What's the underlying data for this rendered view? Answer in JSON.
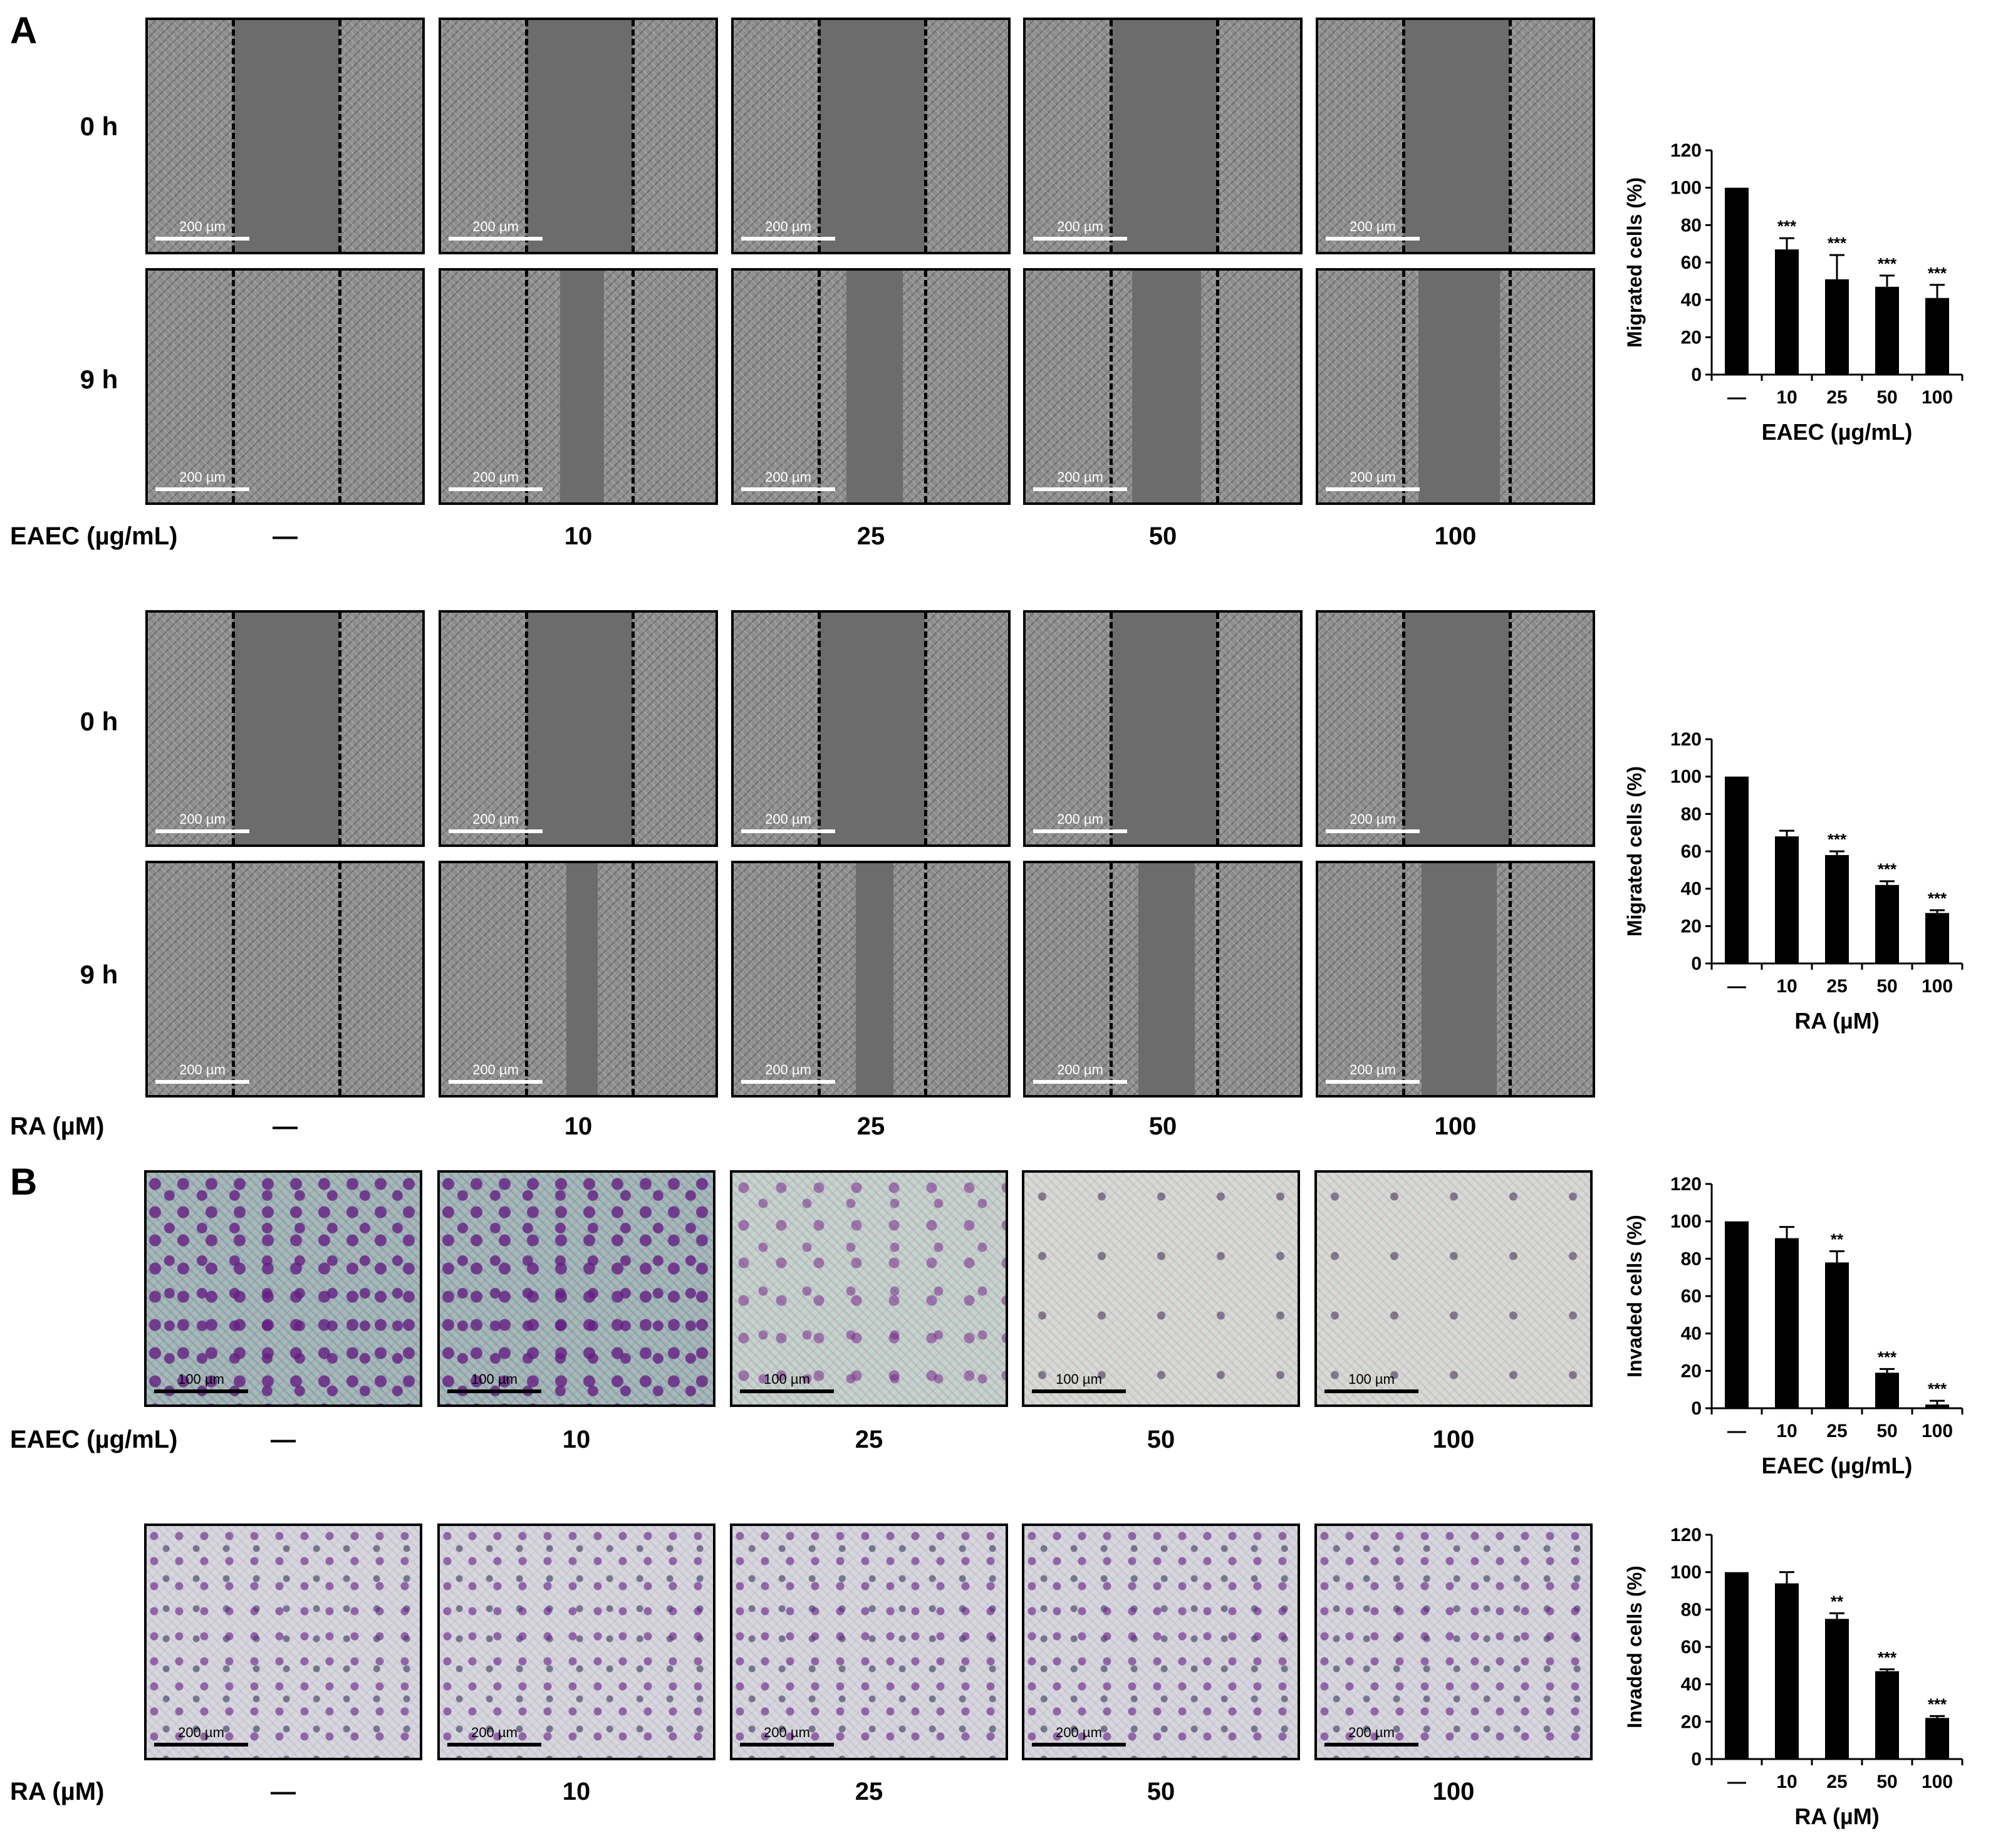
{
  "panel_labels": {
    "a": "A",
    "b": "B"
  },
  "time_labels": {
    "t0": "0 h",
    "t9": "9 h"
  },
  "conditions": [
    "—",
    "10",
    "25",
    "50",
    "100"
  ],
  "treatments": {
    "eaec": "EAEC (µg/mL)",
    "ra": "RA (µM)"
  },
  "scale_bars": {
    "s200": "200 µm",
    "s100": "100 µm"
  },
  "chart_data": [
    {
      "type": "bar",
      "categories": [
        "—",
        "10",
        "25",
        "50",
        "100"
      ],
      "values": [
        100,
        67,
        51,
        47,
        41
      ],
      "errors": [
        0,
        6,
        13,
        6,
        7
      ],
      "significance": [
        "",
        "***",
        "***",
        "***",
        "***"
      ],
      "xlabel": "EAEC (µg/mL)",
      "ylabel": "Migrated cells (%)",
      "ylim": [
        0,
        120
      ],
      "yticks": [
        0,
        20,
        40,
        60,
        80,
        100,
        120
      ]
    },
    {
      "type": "bar",
      "categories": [
        "—",
        "10",
        "25",
        "50",
        "100"
      ],
      "values": [
        100,
        68,
        58,
        42,
        27
      ],
      "errors": [
        0,
        3,
        2,
        2,
        1.5
      ],
      "significance": [
        "",
        "",
        "***",
        "***",
        "***"
      ],
      "xlabel": "RA (µM)",
      "ylabel": "Migrated cells (%)",
      "ylim": [
        0,
        120
      ],
      "yticks": [
        0,
        20,
        40,
        60,
        80,
        100,
        120
      ]
    },
    {
      "type": "bar",
      "categories": [
        "—",
        "10",
        "25",
        "50",
        "100"
      ],
      "values": [
        100,
        91,
        78,
        19,
        2
      ],
      "errors": [
        0,
        6,
        6,
        2,
        2
      ],
      "significance": [
        "",
        "",
        "**",
        "***",
        "***"
      ],
      "xlabel": "EAEC (µg/mL)",
      "ylabel": "Invaded cells (%)",
      "ylim": [
        0,
        120
      ],
      "yticks": [
        0,
        20,
        40,
        60,
        80,
        100,
        120
      ]
    },
    {
      "type": "bar",
      "categories": [
        "—",
        "10",
        "25",
        "50",
        "100"
      ],
      "values": [
        100,
        94,
        75,
        47,
        22
      ],
      "errors": [
        0,
        6,
        3,
        1,
        1
      ],
      "significance": [
        "",
        "",
        "**",
        "***",
        "***"
      ],
      "xlabel": "RA (µM)",
      "ylabel": "Invaded cells (%)",
      "ylim": [
        0,
        120
      ],
      "yticks": [
        0,
        20,
        40,
        60,
        80,
        100,
        120
      ]
    }
  ]
}
